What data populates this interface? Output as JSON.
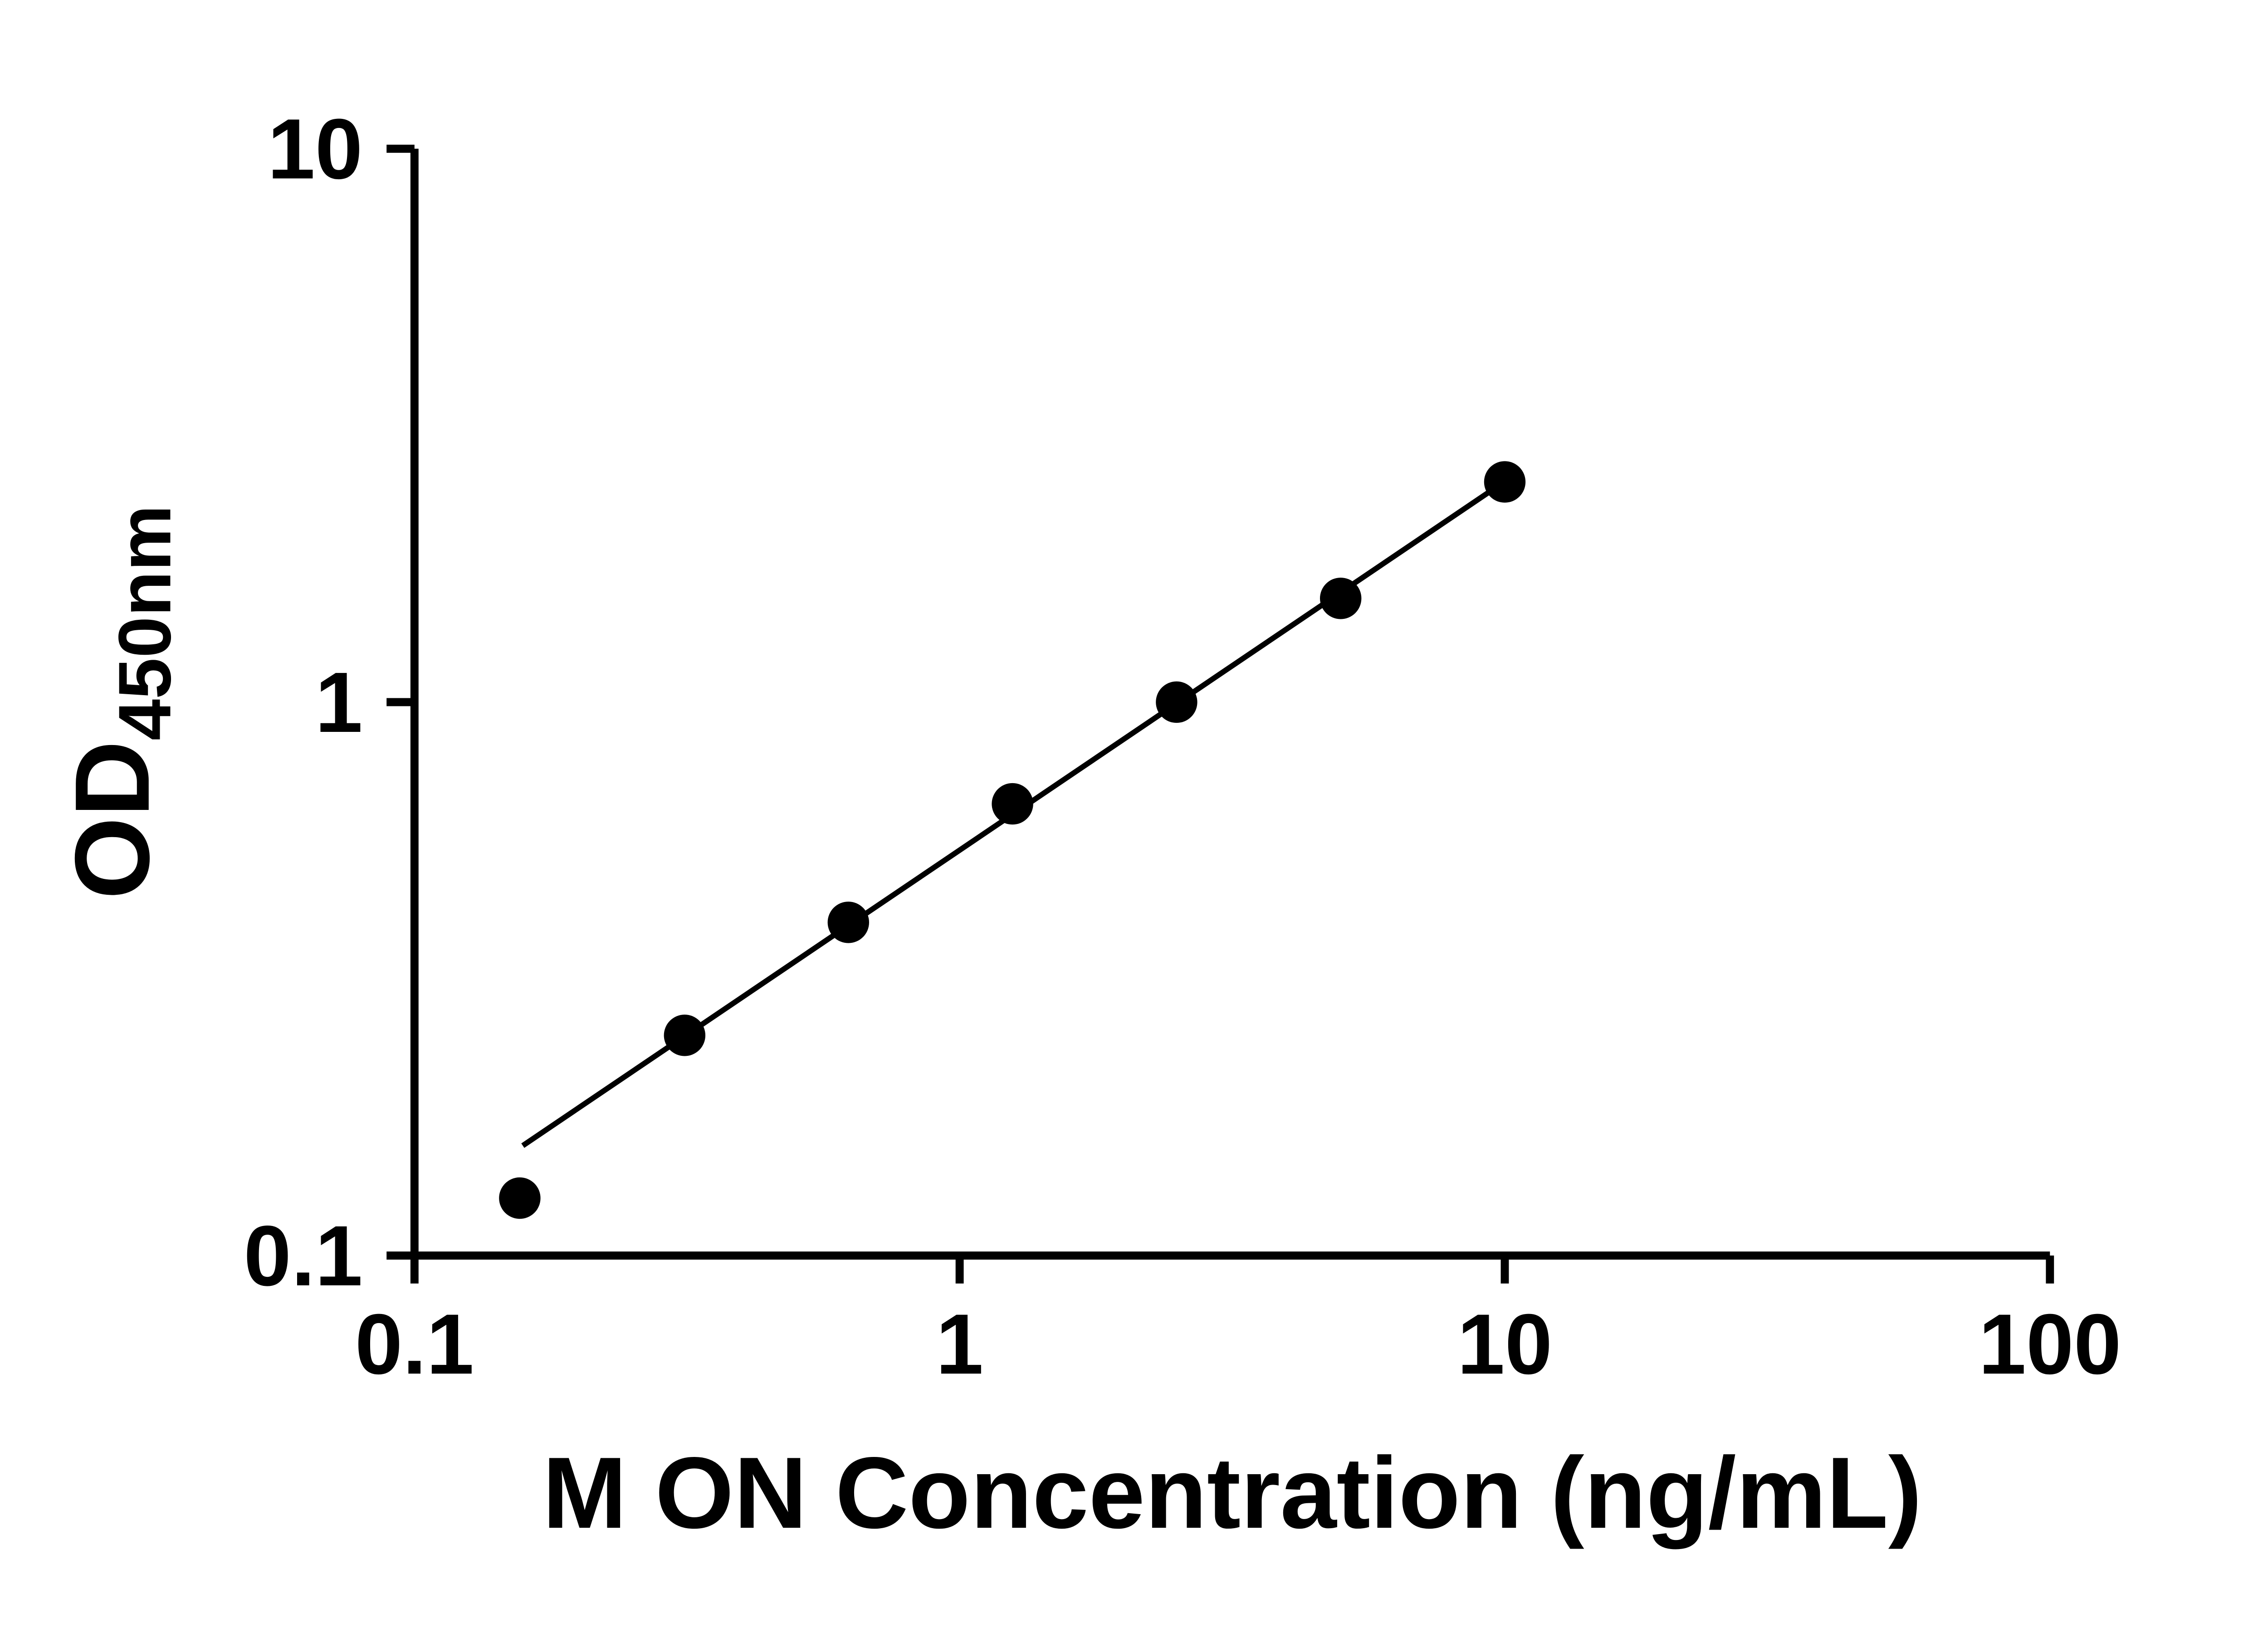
{
  "chart_data": {
    "type": "scatter",
    "title": "",
    "xlabel": "M ON Concentration (ng/mL)",
    "ylabel_main": "OD",
    "ylabel_sub": "450nm",
    "x_scale": "log",
    "y_scale": "log",
    "xlim": [
      0.1,
      100
    ],
    "ylim": [
      0.1,
      10
    ],
    "x_ticks": [
      0.1,
      1,
      10,
      100
    ],
    "x_tick_labels": [
      "0.1",
      "1",
      "10",
      "100"
    ],
    "y_ticks": [
      0.1,
      1,
      10
    ],
    "y_tick_labels": [
      "0.1",
      "1",
      "10"
    ],
    "grid": false,
    "legend": false,
    "marker_color": "#000000",
    "line_color": "#000000",
    "points": {
      "x": [
        0.156,
        0.313,
        0.625,
        1.25,
        2.5,
        5,
        10
      ],
      "y": [
        0.127,
        0.25,
        0.4,
        0.655,
        1.0,
        1.54,
        2.5
      ]
    },
    "trend_line": {
      "x1": 0.158,
      "y1": 0.158,
      "x2": 10.15,
      "y2": 2.53
    }
  }
}
